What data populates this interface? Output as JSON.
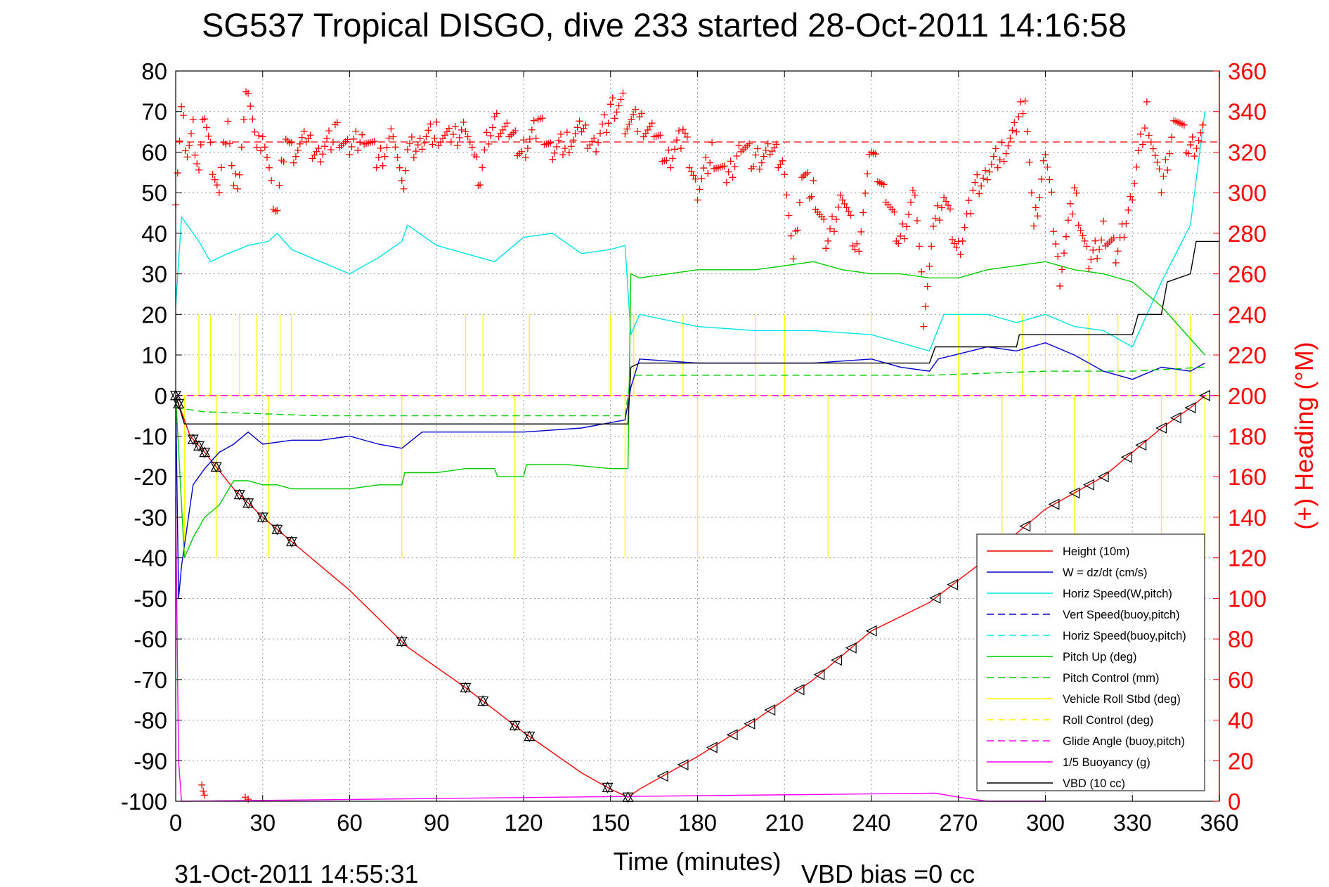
{
  "title": "SG537 Tropical DISGO, dive 233 started 28-Oct-2011 14:16:58",
  "footer": {
    "timestamp": "31-Oct-2011 14:55:31",
    "vbd_bias": "VBD bias =0 cc"
  },
  "chart_data": {
    "type": "line",
    "xlabel": "Time (minutes)",
    "ylabel": "",
    "y2label": "(+) Heading (°M)",
    "xlim": [
      0,
      360
    ],
    "ylim": [
      -100,
      80
    ],
    "y2lim": [
      0,
      360
    ],
    "xticks": [
      0,
      30,
      60,
      90,
      120,
      150,
      180,
      210,
      240,
      270,
      300,
      330,
      360
    ],
    "yticks": [
      80,
      70,
      60,
      50,
      40,
      30,
      20,
      10,
      0,
      -10,
      -20,
      -30,
      -40,
      -50,
      -60,
      -70,
      -80,
      -90,
      -100
    ],
    "y2ticks": [
      360,
      340,
      320,
      300,
      280,
      260,
      240,
      220,
      200,
      180,
      160,
      140,
      120,
      100,
      80,
      60,
      40,
      20,
      0
    ],
    "grid": true,
    "legend_position": "bottom-right",
    "colors": {
      "height": "#ff0000",
      "w": "#0000cc",
      "horiz_w": "#00e5e5",
      "pitch": "#00cc00",
      "roll": "#ffff00",
      "glide": "#ff00ff",
      "vbd": "#000000",
      "heading": "#ff0000"
    },
    "series": [
      {
        "name": "Height (10m)",
        "color": "#ff0000",
        "dash": "none",
        "x": [
          0,
          5,
          10,
          20,
          30,
          40,
          60,
          80,
          100,
          120,
          140,
          150,
          156,
          160,
          180,
          200,
          220,
          240,
          260,
          280,
          300,
          320,
          340,
          350,
          355
        ],
        "y": [
          0,
          -10,
          -14,
          -23,
          -30,
          -36,
          -48,
          -62,
          -72,
          -83,
          -93,
          -97,
          -99,
          -97,
          -89,
          -80,
          -70,
          -58,
          -51,
          -40,
          -28,
          -20,
          -8,
          -3,
          0
        ]
      },
      {
        "name": "W = dz/dt (cm/s)",
        "color": "#0000cc",
        "dash": "none",
        "x": [
          0,
          1,
          2,
          4,
          6,
          10,
          15,
          20,
          25,
          30,
          40,
          50,
          60,
          70,
          78,
          85,
          100,
          120,
          140,
          155,
          157,
          160,
          180,
          200,
          220,
          240,
          250,
          260,
          263,
          280,
          290,
          300,
          310,
          320,
          330,
          340,
          350,
          355
        ],
        "y": [
          0,
          -50,
          -42,
          -32,
          -22,
          -18,
          -14,
          -12,
          -9,
          -12,
          -11,
          -11,
          -10,
          -12,
          -13,
          -9,
          -9,
          -9,
          -8,
          -6,
          2,
          9,
          8,
          8,
          8,
          9,
          7,
          6,
          9,
          12,
          11,
          13,
          10,
          6,
          4,
          7,
          6,
          8
        ]
      },
      {
        "name": "Horiz Speed(W,pitch)",
        "color": "#00e5e5",
        "dash": "none",
        "x": [
          0,
          2,
          4,
          8,
          12,
          18,
          25,
          32,
          35,
          40,
          50,
          60,
          70,
          78,
          80,
          90,
          100,
          110,
          120,
          130,
          140,
          150,
          155,
          157,
          160,
          180,
          200,
          220,
          240,
          250,
          260,
          265,
          280,
          290,
          300,
          310,
          320,
          330,
          335,
          340,
          345,
          350,
          355
        ],
        "y": [
          22,
          44,
          42,
          38,
          33,
          35,
          37,
          38,
          40,
          36,
          33,
          30,
          34,
          38,
          42,
          37,
          35,
          33,
          39,
          40,
          35,
          36,
          37,
          15,
          20,
          17,
          16,
          16,
          15,
          13,
          11,
          20,
          20,
          18,
          20,
          17,
          16,
          12,
          20,
          28,
          35,
          42,
          70
        ]
      },
      {
        "name": "Vert Speed(buoy,pitch)",
        "color": "#0000cc",
        "dash": "10 6",
        "x": [
          0,
          360
        ],
        "y": [
          0,
          0
        ]
      },
      {
        "name": "Horiz Speed(buoy,pitch)",
        "color": "#00e5e5",
        "dash": "10 6",
        "x": [
          0,
          360
        ],
        "y": [
          0,
          0
        ]
      },
      {
        "name": "Pitch Up (deg)",
        "color": "#00cc00",
        "dash": "none",
        "x": [
          0,
          3,
          6,
          10,
          15,
          20,
          25,
          30,
          35,
          40,
          60,
          70,
          78,
          79,
          90,
          100,
          110,
          111,
          120,
          121,
          135,
          150,
          156,
          157,
          160,
          170,
          180,
          200,
          210,
          220,
          230,
          240,
          250,
          260,
          270,
          280,
          290,
          300,
          310,
          320,
          330,
          340,
          345,
          350,
          355
        ],
        "y": [
          0,
          -40,
          -35,
          -30,
          -27,
          -21,
          -21,
          -22,
          -22,
          -23,
          -23,
          -22,
          -22,
          -19,
          -19,
          -18,
          -18,
          -20,
          -20,
          -17,
          -17,
          -18,
          -18,
          30,
          29,
          30,
          31,
          31,
          32,
          33,
          31,
          30,
          30,
          29,
          29,
          31,
          32,
          33,
          31,
          30,
          28,
          22,
          18,
          14,
          10
        ]
      },
      {
        "name": "Pitch Control (mm)",
        "color": "#00cc00",
        "dash": "10 6",
        "x": [
          0,
          10,
          50,
          100,
          155,
          157,
          200,
          260,
          300,
          330,
          355
        ],
        "y": [
          -3,
          -4,
          -5,
          -5,
          -5,
          5,
          5,
          5,
          6,
          6,
          7
        ]
      },
      {
        "name": "Vehicle Roll Stbd (deg)",
        "color": "#ffff00",
        "dash": "none",
        "x": [
          0,
          360
        ],
        "y": [
          0,
          0
        ]
      },
      {
        "name": "Roll Control (deg)",
        "color": "#ffff00",
        "dash": "10 6",
        "x": [
          0,
          360
        ],
        "y": [
          0,
          0
        ]
      },
      {
        "name": "Glide Angle (buoy,pitch)",
        "color": "#ff00ff",
        "dash": "10 6",
        "x": [
          0,
          360
        ],
        "y": [
          0,
          0
        ]
      },
      {
        "name": "1/5 Buoyancy (g)",
        "color": "#ff00ff",
        "dash": "none",
        "x": [
          0,
          0.5,
          1,
          2,
          262,
          270,
          280,
          290,
          300
        ],
        "y": [
          -25,
          -60,
          -90,
          -100,
          -98,
          -99,
          -100,
          -100,
          -100
        ]
      },
      {
        "name": "VBD (10 cc)",
        "color": "#000000",
        "dash": "none",
        "x": [
          0,
          3,
          156,
          157,
          160,
          260,
          262,
          290,
          291,
          330,
          332,
          340,
          342,
          350,
          352,
          360
        ],
        "y": [
          0,
          -7,
          -7,
          7,
          8,
          8,
          12,
          12,
          15,
          15,
          20,
          20,
          28,
          30,
          38,
          38
        ]
      }
    ],
    "heading_segments": [
      {
        "x": [
          0,
          2,
          4,
          6,
          8,
          10,
          12,
          15,
          18,
          20,
          22,
          25,
          28,
          30,
          33,
          35,
          38,
          40,
          45,
          50,
          55,
          60,
          65,
          70,
          75,
          78,
          80,
          85,
          90,
          95,
          100,
          103,
          105,
          108,
          110,
          115,
          120,
          125,
          130,
          135,
          140,
          145,
          150,
          155
        ],
        "y": [
          300,
          340,
          320,
          330,
          310,
          340,
          320,
          300,
          340,
          300,
          310,
          355,
          320,
          330,
          300,
          290,
          330,
          320,
          325,
          320,
          330,
          320,
          330,
          315,
          330,
          300,
          320,
          325,
          330,
          325,
          335,
          315,
          305,
          330,
          335,
          330,
          320,
          335,
          320,
          325,
          330,
          325,
          340,
          345
        ]
      },
      {
        "x": [
          155,
          160,
          165,
          170,
          175,
          180,
          185,
          190,
          195,
          200,
          205,
          210,
          213,
          216,
          220,
          225,
          230,
          235,
          240,
          245,
          250,
          255,
          258,
          262,
          265,
          270,
          275,
          280,
          285,
          290,
          293,
          296,
          300,
          305,
          310,
          315,
          320,
          325,
          330,
          335,
          340,
          345,
          350,
          355
        ],
        "y": [
          335,
          335,
          330,
          315,
          330,
          300,
          320,
          305,
          325,
          315,
          320,
          315,
          265,
          310,
          300,
          275,
          300,
          270,
          320,
          300,
          275,
          300,
          240,
          285,
          300,
          270,
          300,
          310,
          320,
          330,
          350,
          280,
          320,
          260,
          300,
          265,
          280,
          270,
          300,
          340,
          300,
          340,
          320,
          330
        ]
      }
    ],
    "heading_ref": 325,
    "depth_markers": {
      "descent_x": [
        0,
        1,
        6,
        8,
        10,
        14,
        22,
        25,
        30,
        35,
        40,
        78,
        100,
        106,
        117,
        122,
        149,
        156
      ],
      "ascent_x": [
        168,
        175,
        185,
        192,
        198,
        205,
        215,
        222,
        228,
        233,
        240,
        262,
        268,
        280,
        287,
        293,
        303,
        310,
        315,
        320,
        328,
        333,
        340,
        345,
        350,
        355
      ]
    }
  },
  "legend": [
    {
      "label": "Height (10m)",
      "color": "#ff0000",
      "dash": "none"
    },
    {
      "label": "W = dz/dt (cm/s)",
      "color": "#0000cc",
      "dash": "none"
    },
    {
      "label": "Horiz Speed(W,pitch)",
      "color": "#00e5e5",
      "dash": "none"
    },
    {
      "label": "Vert Speed(buoy,pitch)",
      "color": "#0000cc",
      "dash": "10 6"
    },
    {
      "label": "Horiz Speed(buoy,pitch)",
      "color": "#00e5e5",
      "dash": "10 6"
    },
    {
      "label": "Pitch Up (deg)",
      "color": "#00cc00",
      "dash": "none"
    },
    {
      "label": "Pitch Control (mm)",
      "color": "#00cc00",
      "dash": "10 6"
    },
    {
      "label": "Vehicle Roll Stbd (deg)",
      "color": "#ffff00",
      "dash": "none"
    },
    {
      "label": "Roll Control (deg)",
      "color": "#ffff00",
      "dash": "10 6"
    },
    {
      "label": "Glide Angle (buoy,pitch)",
      "color": "#ff00ff",
      "dash": "10 6"
    },
    {
      "label": "1/5 Buoyancy (g)",
      "color": "#ff00ff",
      "dash": "none"
    },
    {
      "label": "VBD (10 cc)",
      "color": "#000000",
      "dash": "none"
    }
  ]
}
